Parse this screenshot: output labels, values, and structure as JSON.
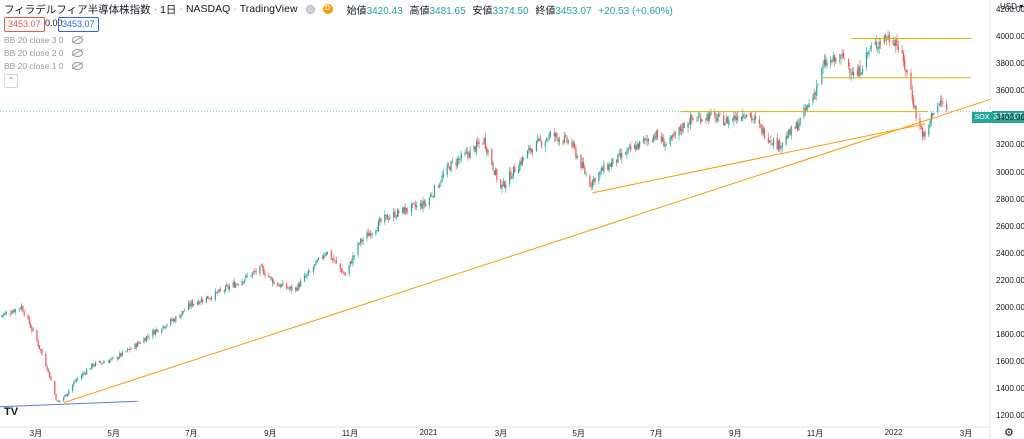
{
  "header": {
    "symbol_title": "フィラデルフィア半導体株指数",
    "interval": "1日",
    "exchange": "NASDAQ",
    "source": "TradingView",
    "ohlc": {
      "open_label": "始値",
      "open": "3420.43",
      "high_label": "高値",
      "high": "3481.65",
      "low_label": "安値",
      "low": "3374.50",
      "close_label": "終値",
      "close": "3453.07",
      "change": "+20.53 (+0.60%)"
    },
    "status_letter": "D"
  },
  "price_boxes": {
    "sell": "3453.07",
    "spread": "0.00",
    "buy": "3453.07"
  },
  "indicators": [
    "BB 20 close 3 0",
    "BB 20 close 2 0",
    "BB 20 close 1 0"
  ],
  "currency": "USD",
  "symbol_tag": "SOX",
  "last_price_tag": "3453.07",
  "colors": {
    "up": "#26a69a",
    "down": "#ef5350",
    "trendline": "#ff9800",
    "level": "#e8b200",
    "support_blue": "#5b7ce6"
  },
  "chart_data": {
    "type": "candlestick",
    "title": "フィラデルフィア半導体株指数",
    "y_ticks": [
      1200,
      1400,
      1600,
      1800,
      2000,
      2200,
      2400,
      2600,
      2800,
      3000,
      3200,
      3400,
      3600,
      3800,
      4000,
      4200
    ],
    "y_tick_labels": [
      "1200.00",
      "1400.00",
      "1600.00",
      "1800.00",
      "2000.00",
      "2200.00",
      "2400.00",
      "2600.00",
      "2800.00",
      "3000.00",
      "3200.00",
      "3400.00",
      "3600.00",
      "3800.00",
      "4000.00",
      "4200.00"
    ],
    "ylim": [
      1120,
      4260
    ],
    "x_range": [
      "2020-02-02",
      "2022-03-20"
    ],
    "x_ticks": [
      {
        "date": "2020-03-01",
        "label": "3月"
      },
      {
        "date": "2020-05-01",
        "label": "5月"
      },
      {
        "date": "2020-07-01",
        "label": "7月"
      },
      {
        "date": "2020-09-01",
        "label": "9月"
      },
      {
        "date": "2020-11-01",
        "label": "11月"
      },
      {
        "date": "2021-01-01",
        "label": "2021"
      },
      {
        "date": "2021-03-01",
        "label": "3月"
      },
      {
        "date": "2021-05-01",
        "label": "5月"
      },
      {
        "date": "2021-07-01",
        "label": "7月"
      },
      {
        "date": "2021-09-01",
        "label": "9月"
      },
      {
        "date": "2021-11-01",
        "label": "11月"
      },
      {
        "date": "2022-01-01",
        "label": "2022"
      },
      {
        "date": "2022-03-01",
        "label": "3月"
      }
    ],
    "close_path": [
      [
        "2020-02-02",
        1940
      ],
      [
        "2020-02-19",
        2010
      ],
      [
        "2020-03-01",
        1780
      ],
      [
        "2020-03-10",
        1560
      ],
      [
        "2020-03-18",
        1300
      ],
      [
        "2020-03-24",
        1350
      ],
      [
        "2020-04-01",
        1460
      ],
      [
        "2020-04-15",
        1580
      ],
      [
        "2020-05-01",
        1620
      ],
      [
        "2020-05-15",
        1700
      ],
      [
        "2020-06-01",
        1820
      ],
      [
        "2020-06-20",
        1930
      ],
      [
        "2020-07-01",
        2030
      ],
      [
        "2020-07-20",
        2100
      ],
      [
        "2020-08-05",
        2180
      ],
      [
        "2020-08-25",
        2290
      ],
      [
        "2020-09-05",
        2180
      ],
      [
        "2020-09-20",
        2130
      ],
      [
        "2020-10-01",
        2250
      ],
      [
        "2020-10-15",
        2420
      ],
      [
        "2020-10-30",
        2240
      ],
      [
        "2020-11-10",
        2480
      ],
      [
        "2020-11-30",
        2660
      ],
      [
        "2020-12-15",
        2720
      ],
      [
        "2021-01-01",
        2770
      ],
      [
        "2021-01-20",
        3050
      ],
      [
        "2021-02-05",
        3150
      ],
      [
        "2021-02-16",
        3240
      ],
      [
        "2021-03-01",
        2880
      ],
      [
        "2021-03-10",
        3000
      ],
      [
        "2021-03-25",
        3180
      ],
      [
        "2021-04-10",
        3280
      ],
      [
        "2021-04-25",
        3220
      ],
      [
        "2021-05-10",
        2920
      ],
      [
        "2021-05-20",
        3020
      ],
      [
        "2021-06-10",
        3160
      ],
      [
        "2021-06-30",
        3280
      ],
      [
        "2021-07-10",
        3200
      ],
      [
        "2021-07-25",
        3380
      ],
      [
        "2021-08-10",
        3420
      ],
      [
        "2021-08-25",
        3380
      ],
      [
        "2021-09-10",
        3450
      ],
      [
        "2021-09-25",
        3280
      ],
      [
        "2021-10-05",
        3200
      ],
      [
        "2021-10-20",
        3350
      ],
      [
        "2021-11-01",
        3560
      ],
      [
        "2021-11-10",
        3800
      ],
      [
        "2021-11-25",
        3850
      ],
      [
        "2021-12-05",
        3700
      ],
      [
        "2021-12-15",
        3900
      ],
      [
        "2021-12-27",
        4000
      ],
      [
        "2022-01-05",
        3980
      ],
      [
        "2022-01-15",
        3700
      ],
      [
        "2022-01-22",
        3380
      ],
      [
        "2022-01-28",
        3250
      ],
      [
        "2022-02-03",
        3450
      ],
      [
        "2022-02-10",
        3520
      ],
      [
        "2022-02-14",
        3453
      ]
    ],
    "last_close": 3453.07,
    "trendlines": [
      {
        "name": "long-uptrend",
        "from": [
          "2020-03-23",
          1300
        ],
        "to": [
          "2022-03-20",
          3540
        ],
        "color": "#ff9800"
      },
      {
        "name": "second-uptrend",
        "from": [
          "2021-05-12",
          2850
        ],
        "to": [
          "2022-01-28",
          3360
        ],
        "color": "#ff9800"
      },
      {
        "name": "support-blue",
        "from": [
          "2020-02-02",
          1270
        ],
        "to": [
          "2020-05-20",
          1310
        ],
        "color": "#5b7ce6"
      }
    ],
    "horizontal_levels": [
      {
        "y": 3990,
        "from": "2021-12-01",
        "to": "2022-03-05"
      },
      {
        "y": 3700,
        "from": "2021-11-08",
        "to": "2022-03-05"
      },
      {
        "y": 3450,
        "from": "2021-07-20",
        "to": "2022-01-30"
      }
    ],
    "price_line": 3453.07,
    "grid": false
  }
}
